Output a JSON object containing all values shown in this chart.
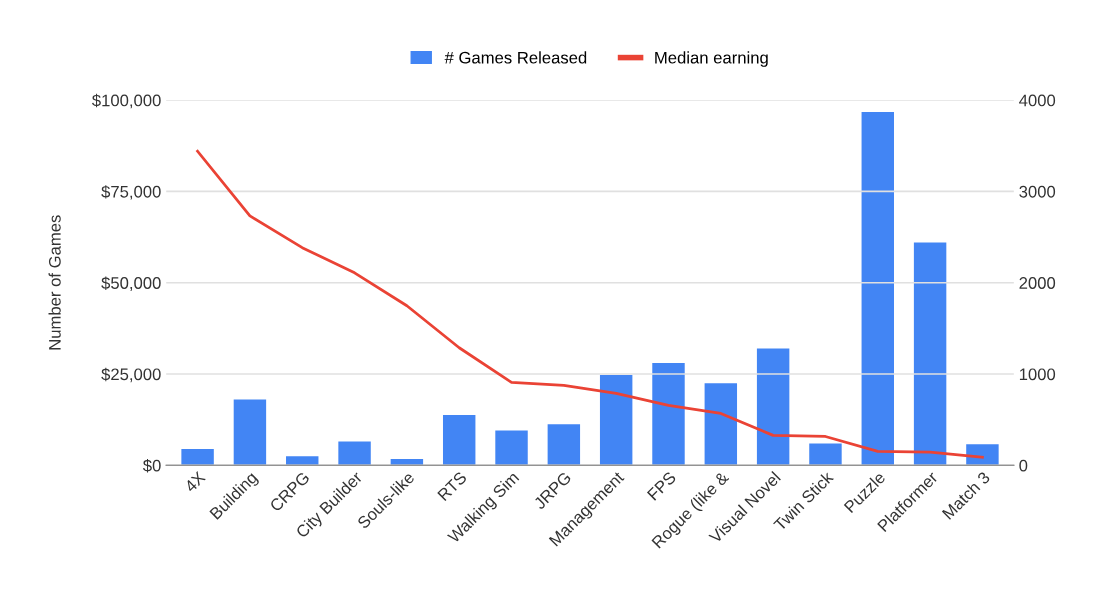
{
  "chart_data": {
    "type": "bar",
    "ylabel": "Number of Games",
    "categories": [
      "4X",
      "Building",
      "CRPG",
      "City Builder",
      "Souls-like",
      "RTS",
      "Walking Sim",
      "JRPG",
      "Management",
      "FPS",
      "Rogue (like &",
      "Visual Novel",
      "Twin Stick",
      "Puzzle",
      "Platformer",
      "Match 3"
    ],
    "series": [
      {
        "name": "# Games Released",
        "axis": "y2",
        "color": "#4285f4",
        "values": [
          180,
          720,
          100,
          260,
          70,
          550,
          380,
          450,
          990,
          1120,
          900,
          1280,
          240,
          3870,
          2440,
          230
        ]
      },
      {
        "name": "Median earning",
        "type": "line",
        "axis": "y",
        "color": "#ea4335",
        "values": [
          86000,
          68300,
          59600,
          52700,
          43700,
          32200,
          22700,
          21900,
          19700,
          16400,
          14200,
          8200,
          7900,
          3800,
          3600,
          2200
        ]
      }
    ],
    "ylim": [
      0,
      100000
    ],
    "yticks": [
      {
        "value": 0,
        "label": "$0"
      },
      {
        "value": 25000,
        "label": "$25,000"
      },
      {
        "value": 50000,
        "label": "$50,000"
      },
      {
        "value": 75000,
        "label": "$75,000"
      },
      {
        "value": 100000,
        "label": "$100,000"
      }
    ],
    "y2lim": [
      0,
      4000
    ],
    "y2ticks": [
      0,
      1000,
      2000,
      3000,
      4000
    ],
    "grid": "y",
    "legend": "top",
    "marker": "none",
    "line_style": "solid"
  }
}
